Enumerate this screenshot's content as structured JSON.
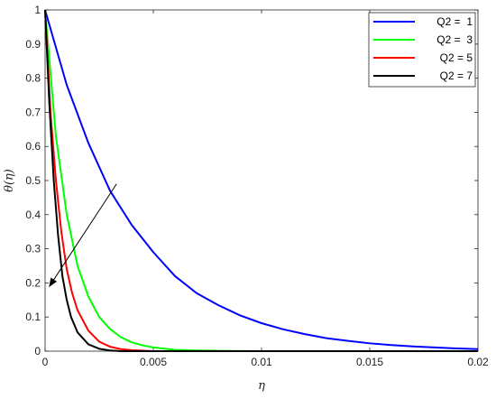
{
  "chart_data": {
    "type": "line",
    "title": "",
    "xlabel": "η",
    "ylabel": "θ(η)",
    "xlim": [
      0,
      0.02
    ],
    "ylim": [
      0,
      1
    ],
    "x_ticks": [
      0,
      0.005,
      0.01,
      0.015,
      0.02
    ],
    "x_tick_labels": [
      "0",
      "0.005",
      "0.01",
      "0.015",
      "0.02"
    ],
    "y_ticks": [
      0,
      0.1,
      0.2,
      0.3,
      0.4,
      0.5,
      0.6,
      0.7,
      0.8,
      0.9,
      1
    ],
    "y_tick_labels": [
      "0",
      "0.1",
      "0.2",
      "0.3",
      "0.4",
      "0.5",
      "0.6",
      "0.7",
      "0.8",
      "0.9",
      "1"
    ],
    "grid": false,
    "legend_position": "top-right",
    "series": [
      {
        "name": "Q2 =  1",
        "color": "#0000ff",
        "x": [
          0,
          0.001,
          0.002,
          0.003,
          0.004,
          0.005,
          0.006,
          0.007,
          0.008,
          0.009,
          0.01,
          0.011,
          0.012,
          0.013,
          0.014,
          0.015,
          0.016,
          0.017,
          0.018,
          0.019,
          0.02
        ],
        "y": [
          1,
          0.78,
          0.61,
          0.47,
          0.37,
          0.29,
          0.22,
          0.17,
          0.135,
          0.105,
          0.082,
          0.064,
          0.05,
          0.038,
          0.03,
          0.023,
          0.018,
          0.014,
          0.011,
          0.008,
          0.006
        ]
      },
      {
        "name": "Q2 =  3",
        "color": "#00ff00",
        "x": [
          0,
          0.0005,
          0.001,
          0.0015,
          0.002,
          0.0025,
          0.003,
          0.0035,
          0.004,
          0.0045,
          0.005,
          0.006,
          0.007,
          0.008,
          0.01,
          0.02
        ],
        "y": [
          1,
          0.63,
          0.4,
          0.25,
          0.16,
          0.1,
          0.065,
          0.041,
          0.026,
          0.017,
          0.011,
          0.004,
          0.002,
          0.001,
          0.0,
          0.0
        ]
      },
      {
        "name": "Q2 = 5",
        "color": "#ff0000",
        "x": [
          0,
          0.00025,
          0.0005,
          0.00075,
          0.001,
          0.00125,
          0.0015,
          0.002,
          0.0025,
          0.003,
          0.0035,
          0.004,
          0.005,
          0.02
        ],
        "y": [
          1,
          0.7,
          0.5,
          0.35,
          0.24,
          0.17,
          0.12,
          0.06,
          0.028,
          0.013,
          0.006,
          0.003,
          0.0,
          0.0
        ]
      },
      {
        "name": "Q2 = 7",
        "color": "#000000",
        "x": [
          0,
          0.0002,
          0.0004,
          0.0006,
          0.0008,
          0.001,
          0.0012,
          0.0015,
          0.002,
          0.0025,
          0.003,
          0.0035,
          0.02
        ],
        "y": [
          1,
          0.72,
          0.5,
          0.34,
          0.22,
          0.15,
          0.1,
          0.055,
          0.02,
          0.007,
          0.002,
          0.0,
          0.0
        ]
      }
    ],
    "annotation": {
      "type": "arrow",
      "x_start": 0.0033,
      "y_start": 0.49,
      "x_end": 0.0002,
      "y_end": 0.19
    }
  }
}
